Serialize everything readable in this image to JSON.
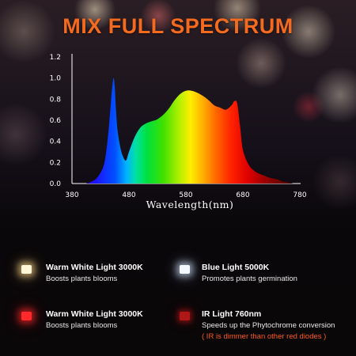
{
  "headline": "MIX FULL SPECTRUM",
  "chart_data": {
    "type": "area",
    "xlabel": "Wavelength(nm)",
    "ylabel": "",
    "xlim": [
      380,
      780
    ],
    "ylim": [
      0,
      1.2
    ],
    "x_ticks": [
      "380",
      "480",
      "580",
      "680",
      "780"
    ],
    "y_ticks": [
      "0.0",
      "0.2",
      "0.4",
      "0.6",
      "0.8",
      "1.0",
      "1.2"
    ],
    "grid": false,
    "series": [
      {
        "x": [
          405,
          415,
          425,
          435,
          440,
          445,
          450,
          453,
          455,
          457,
          460,
          465,
          470,
          475,
          480,
          490,
          500,
          510,
          520,
          530,
          540,
          550,
          560,
          570,
          580,
          590,
          600,
          610,
          620,
          630,
          640,
          650,
          660,
          665,
          670,
          675,
          680,
          690,
          700,
          710,
          720,
          730,
          740,
          750,
          760,
          770,
          780
        ],
        "y": [
          0.0,
          0.02,
          0.06,
          0.16,
          0.3,
          0.55,
          0.88,
          1.0,
          0.92,
          0.72,
          0.5,
          0.34,
          0.25,
          0.22,
          0.3,
          0.44,
          0.53,
          0.57,
          0.59,
          0.61,
          0.65,
          0.71,
          0.79,
          0.85,
          0.88,
          0.88,
          0.86,
          0.83,
          0.79,
          0.74,
          0.72,
          0.7,
          0.74,
          0.78,
          0.76,
          0.55,
          0.32,
          0.18,
          0.12,
          0.09,
          0.07,
          0.05,
          0.04,
          0.02,
          0.01,
          0.0,
          0.0
        ]
      }
    ]
  },
  "legend": [
    {
      "led": "warm-white",
      "color": "#fff6d8",
      "title": "Warm White Light 3000K",
      "desc": "Boosts plants blooms",
      "note": ""
    },
    {
      "led": "blue-white",
      "color": "#f4f8ff",
      "title": "Blue Light  5000K",
      "desc": "Promotes plants germination",
      "note": ""
    },
    {
      "led": "red",
      "color": "#ff2a2a",
      "title": "Warm White Light 3000K",
      "desc": "Boosts plants blooms",
      "note": ""
    },
    {
      "led": "ir",
      "color": "#b01818",
      "title": "IR Light  760nm",
      "desc": "Speeds up the Phytochrome conversion",
      "note": "( IR is dimmer than other red diodes )"
    }
  ],
  "colors": {
    "headline": "#f46a1f",
    "note": "#ff5a1a",
    "axis": "#ffffff"
  }
}
